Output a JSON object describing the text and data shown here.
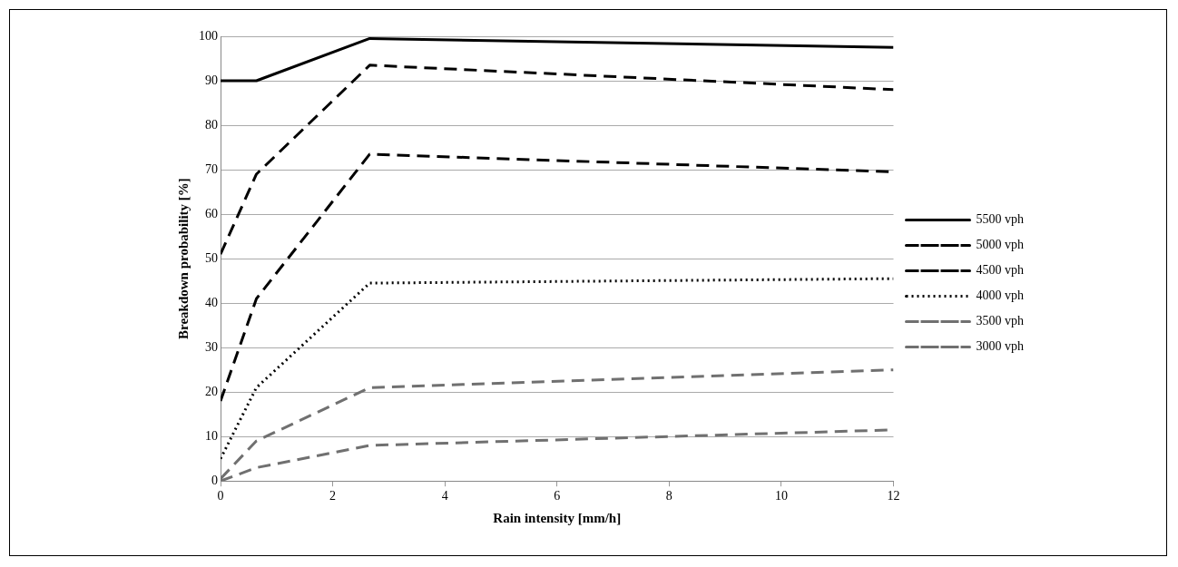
{
  "chart_data": {
    "type": "line",
    "xlabel": "Rain intensity [mm/h]",
    "ylabel": "Breakdown probability [%]",
    "xlim": [
      0,
      12
    ],
    "xticks": [
      0,
      2,
      4,
      6,
      8,
      10,
      12
    ],
    "ylim": [
      0,
      100
    ],
    "yticks": [
      0,
      10,
      20,
      30,
      40,
      50,
      60,
      70,
      80,
      90,
      100
    ],
    "grid": "y",
    "legend": "right",
    "marker": "none",
    "x": [
      0,
      0.64,
      2.66,
      12
    ],
    "series": [
      {
        "name": "5500 vph",
        "color": "#000000",
        "line_style": "solid",
        "values": [
          90,
          90,
          99.5,
          97.5
        ]
      },
      {
        "name": "5000 vph",
        "color": "#000000",
        "line_style": "dashed",
        "values": [
          51,
          69,
          93.5,
          88
        ]
      },
      {
        "name": "4500 vph",
        "color": "#000000",
        "line_style": "dashed",
        "values": [
          18,
          41,
          73.5,
          69.5
        ]
      },
      {
        "name": "4000 vph",
        "color": "#000000",
        "line_style": "dotted",
        "values": [
          5,
          21,
          44.5,
          45.5
        ]
      },
      {
        "name": "3500 vph",
        "color": "#707070",
        "line_style": "dashed",
        "values": [
          0.5,
          9,
          21,
          25
        ]
      },
      {
        "name": "3000 vph",
        "color": "#707070",
        "line_style": "dashed",
        "values": [
          0,
          3,
          8,
          11.5
        ]
      }
    ]
  }
}
